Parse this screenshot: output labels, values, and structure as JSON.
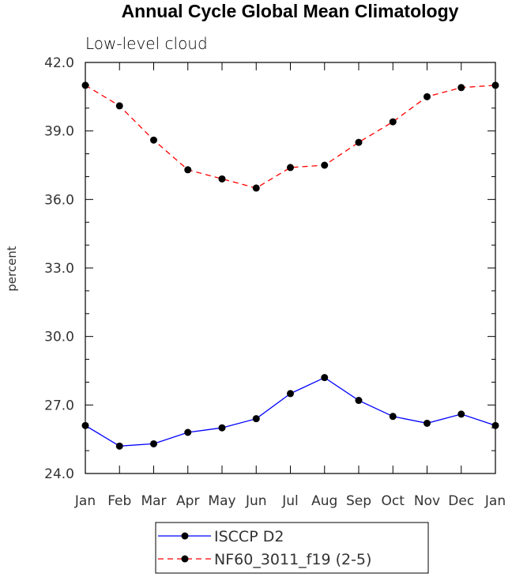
{
  "chart_data": {
    "type": "line",
    "title": "Annual Cycle Global Mean Climatology",
    "subtitle": "Low-level cloud",
    "ylabel": "percent",
    "xlabel": "",
    "categories": [
      "Jan",
      "Feb",
      "Mar",
      "Apr",
      "May",
      "Jun",
      "Jul",
      "Aug",
      "Sep",
      "Oct",
      "Nov",
      "Dec",
      "Jan"
    ],
    "ylim": [
      24.0,
      42.0
    ],
    "yticks": [
      "24.0",
      "27.0",
      "30.0",
      "33.0",
      "36.0",
      "39.0",
      "42.0"
    ],
    "grid": false,
    "legend_position": "bottom-center",
    "series": [
      {
        "name": "ISCCP D2",
        "color": "#0000ff",
        "style": "solid",
        "marker": "dot",
        "values": [
          26.1,
          25.2,
          25.3,
          25.8,
          26.0,
          26.4,
          27.5,
          28.2,
          27.2,
          26.5,
          26.2,
          26.6,
          26.1
        ]
      },
      {
        "name": "NF60_3011_f19 (2-5)",
        "color": "#ff0000",
        "style": "dashed",
        "marker": "dot",
        "values": [
          41.0,
          40.1,
          38.6,
          37.3,
          36.9,
          36.5,
          37.4,
          37.5,
          38.5,
          39.4,
          40.5,
          40.9,
          41.0
        ]
      }
    ]
  }
}
